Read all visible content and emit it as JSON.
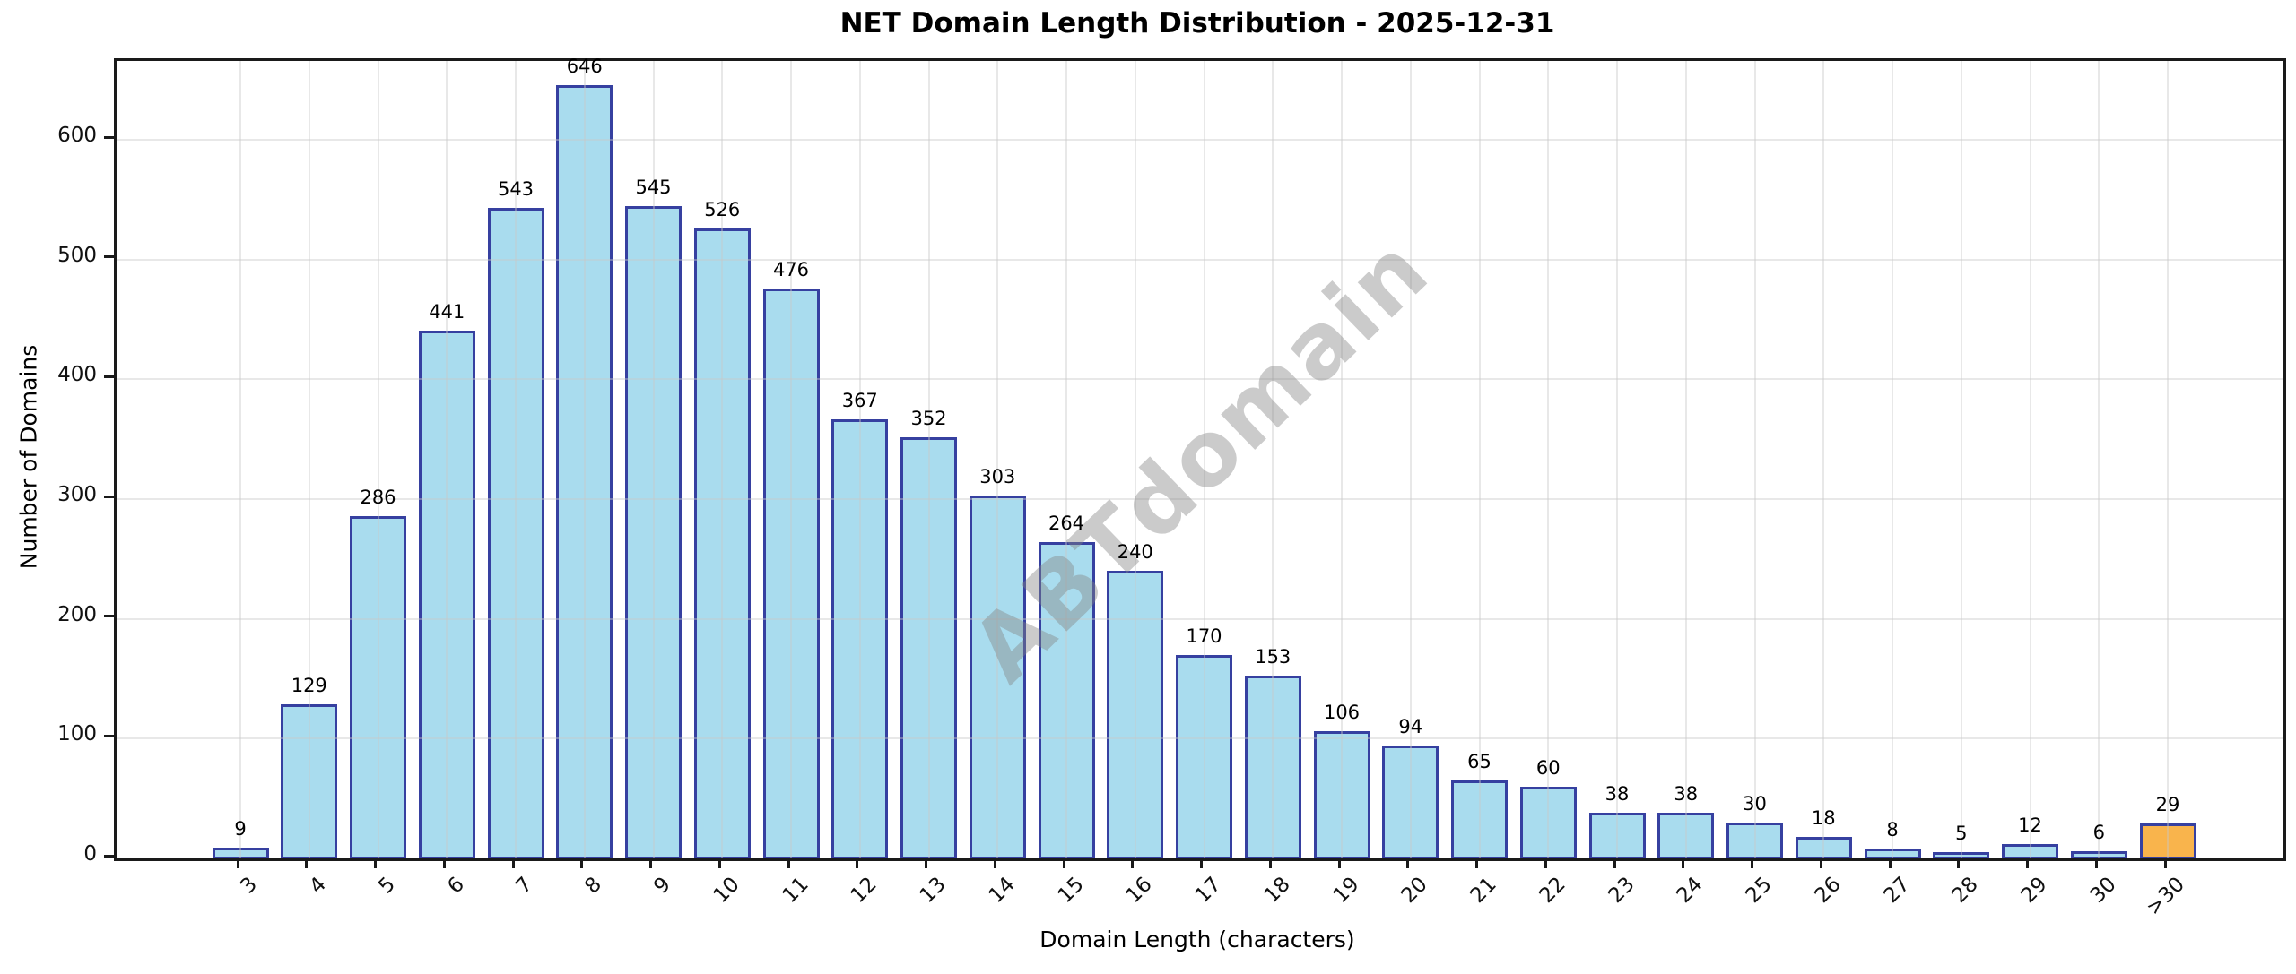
{
  "chart_data": {
    "type": "bar",
    "title": "NET Domain Length Distribution - 2025-12-31",
    "xlabel": "Domain Length (characters)",
    "ylabel": "Number of Domains",
    "watermark": "ABTdomain",
    "categories": [
      "3",
      "4",
      "5",
      "6",
      "7",
      "8",
      "9",
      "10",
      "11",
      "12",
      "13",
      "14",
      "15",
      "16",
      "17",
      "18",
      "19",
      "20",
      "21",
      "22",
      "23",
      "24",
      "25",
      "26",
      "27",
      "28",
      "29",
      "30",
      ">30"
    ],
    "values": [
      9,
      129,
      286,
      441,
      543,
      646,
      545,
      526,
      476,
      367,
      352,
      303,
      264,
      240,
      170,
      153,
      106,
      94,
      65,
      60,
      38,
      38,
      30,
      18,
      8,
      5,
      12,
      6,
      29
    ],
    "yticks": [
      0,
      100,
      200,
      300,
      400,
      500,
      600
    ],
    "ylim": [
      0,
      666
    ],
    "xtick_rotation_deg": 45,
    "grid": true,
    "legend_position": "none",
    "colors": {
      "bar_fill": "#a9dcee",
      "bar_edge": "#3640a0",
      "highlight_fill": "#f9b44c",
      "gridline": "#c8c8c8",
      "spine": "#1a1a1a",
      "watermark_gray": "#828282"
    },
    "highlight_index": 28
  }
}
